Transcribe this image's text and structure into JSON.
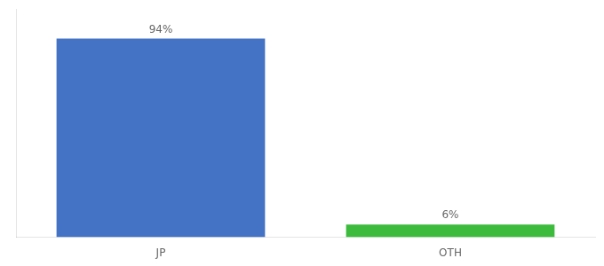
{
  "chart_data": {
    "type": "bar",
    "categories": [
      "JP",
      "OTH"
    ],
    "values": [
      94,
      6
    ],
    "value_labels": [
      "94%",
      "6%"
    ],
    "data_labels": true,
    "colors": [
      "#4472c4",
      "#3dbb3d"
    ],
    "ylim": [
      0,
      108
    ],
    "tick_labels": "x",
    "grid": false
  }
}
